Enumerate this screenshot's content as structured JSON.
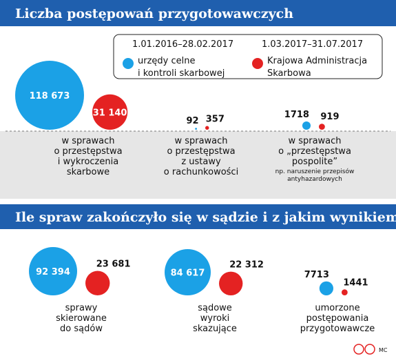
{
  "legend_periods": [
    "1.01.2016–28.02.2017",
    "1.03.2017–31.07.2017"
  ],
  "credit": "MC",
  "chart_data": [
    {
      "type": "bubble",
      "title": "Liczba postępowań przygotowawczych",
      "categories": [
        "w sprawach\no przestępstwa\ni wykroczenia\nskarbowe",
        "w sprawach\no przestępstwa\nz ustawy\no rachunkowości",
        "w sprawach\no „przestępstwa\npospolite”"
      ],
      "category_notes": [
        null,
        null,
        "np. naruszenie przepisów\nantyhazardowych"
      ],
      "series": [
        {
          "name": "urzędy celne\ni kontroli skarbowej",
          "color": "#1ba1e6",
          "values": [
            118673,
            92,
            1718
          ],
          "value_labels": [
            "118 673",
            "92",
            "1718"
          ]
        },
        {
          "name": "Krajowa Administracja\nSkarbowa",
          "color": "#e42222",
          "values": [
            31140,
            357,
            919
          ],
          "value_labels": [
            "31 140",
            "357",
            "919"
          ]
        }
      ]
    },
    {
      "type": "bubble",
      "title": "Ile spraw zakończyło się w sądzie i z jakim wynikiem",
      "categories": [
        "sprawy\nskierowane\ndo sądów",
        "sądowe\nwyroki\nskazujące",
        "umorzone\npostępowania\nprzygotowawcze"
      ],
      "series": [
        {
          "name": "urzędy celne\ni kontroli skarbowej",
          "color": "#1ba1e6",
          "values": [
            92394,
            84617,
            7713
          ],
          "value_labels": [
            "92 394",
            "84 617",
            "7713"
          ]
        },
        {
          "name": "Krajowa Administracja\nSkarbowa",
          "color": "#e42222",
          "values": [
            23681,
            22312,
            1441
          ],
          "value_labels": [
            "23 681",
            "22 312",
            "1441"
          ]
        }
      ]
    }
  ]
}
